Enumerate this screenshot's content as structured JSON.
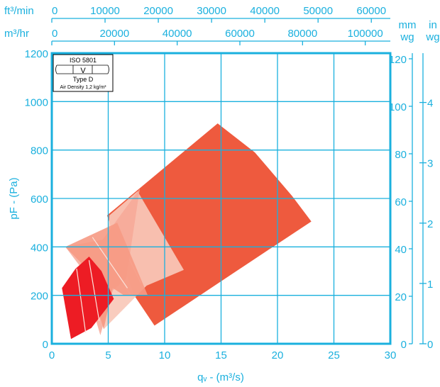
{
  "chart_data": {
    "type": "area",
    "xlabel": "qᵥ - (m³/s)",
    "ylabel": "pF - (Pa)",
    "xlim": [
      0,
      30
    ],
    "ylim": [
      0,
      1200
    ],
    "x_ticks": [
      "0",
      "5",
      "10",
      "15",
      "20",
      "25",
      "30"
    ],
    "y_ticks": [
      "0",
      "200",
      "400",
      "600",
      "800",
      "1000",
      "1200"
    ],
    "grid": true,
    "top_axes": [
      {
        "unit": "ft³/min",
        "ticks": [
          "0",
          "10000",
          "20000",
          "30000",
          "40000",
          "50000",
          "60000"
        ],
        "values": [
          0,
          10000,
          20000,
          30000,
          40000,
          50000,
          60000
        ],
        "factor": 0.000471947
      },
      {
        "unit": "m³/hr",
        "ticks": [
          "0",
          "20000",
          "40000",
          "60000",
          "80000",
          "100000"
        ],
        "values": [
          0,
          20000,
          40000,
          60000,
          80000,
          100000
        ],
        "factor": 0.000277778
      }
    ],
    "right_axes": [
      {
        "unit": "mm wg",
        "ticks": [
          "0",
          "20",
          "40",
          "60",
          "80",
          "100",
          "120"
        ],
        "values": [
          0,
          20,
          40,
          60,
          80,
          100,
          120
        ],
        "factor": 9.80665
      },
      {
        "unit": "in wg",
        "ticks": [
          "0",
          "1",
          "2",
          "3",
          "4"
        ],
        "values": [
          0,
          1,
          2,
          3,
          4
        ],
        "factor": 249.089
      }
    ],
    "legend_box": {
      "standard": "ISO 5801",
      "roman": "V",
      "type": "Type D",
      "density": "Air Density 1,2 kg/m³"
    },
    "series": [
      {
        "color": "#ee5a3e",
        "opacity": 1,
        "points": [
          [
            4.9,
            530
          ],
          [
            14.7,
            910
          ],
          [
            18,
            790
          ],
          [
            21.3,
            610
          ],
          [
            23,
            505
          ],
          [
            17,
            320
          ],
          [
            9.1,
            75
          ],
          [
            7.3,
            200
          ],
          [
            6.6,
            290
          ]
        ],
        "dividers": []
      },
      {
        "color": "#f8c8b8",
        "opacity": 0.92,
        "points": [
          [
            4.8,
            300
          ],
          [
            5.1,
            530
          ],
          [
            7.6,
            630
          ],
          [
            11.7,
            305
          ],
          [
            8.4,
            240
          ],
          [
            4.6,
            60
          ],
          [
            4.4,
            120
          ]
        ],
        "dividers": [
          [
            [
              5.6,
              470
            ],
            [
              7.9,
              250
            ]
          ]
        ]
      },
      {
        "color": "#f7a898",
        "opacity": 0.85,
        "points": [
          [
            1.2,
            400
          ],
          [
            4.5,
            430
          ],
          [
            7.8,
            640
          ],
          [
            6.6,
            270
          ],
          [
            5.4,
            220
          ],
          [
            4.3,
            35
          ],
          [
            2.5,
            320
          ]
        ],
        "dividers": [
          [
            [
              4.3,
              400
            ],
            [
              7.0,
              200
            ]
          ]
        ]
      },
      {
        "color": "#f69a84",
        "opacity": 0.9,
        "points": [
          [
            1.2,
            400
          ],
          [
            5.8,
            500
          ],
          [
            8.5,
            200
          ],
          [
            6.4,
            200
          ],
          [
            5.4,
            230
          ],
          [
            4.6,
            60
          ],
          [
            2.9,
            320
          ]
        ],
        "dividers": [
          [
            [
              3.6,
              440
            ],
            [
              6.7,
              230
            ]
          ]
        ]
      },
      {
        "color": "#ed1c24",
        "opacity": 1,
        "points": [
          [
            0.9,
            230
          ],
          [
            2.1,
            310
          ],
          [
            3.3,
            360
          ],
          [
            4.4,
            300
          ],
          [
            5.5,
            185
          ],
          [
            4.5,
            125
          ],
          [
            3.5,
            65
          ],
          [
            1.7,
            20
          ]
        ],
        "dividers": [
          [
            [
              2.2,
              310
            ],
            [
              3.0,
              45
            ]
          ],
          [
            [
              3.3,
              345
            ],
            [
              4.2,
              95
            ]
          ]
        ]
      }
    ]
  }
}
